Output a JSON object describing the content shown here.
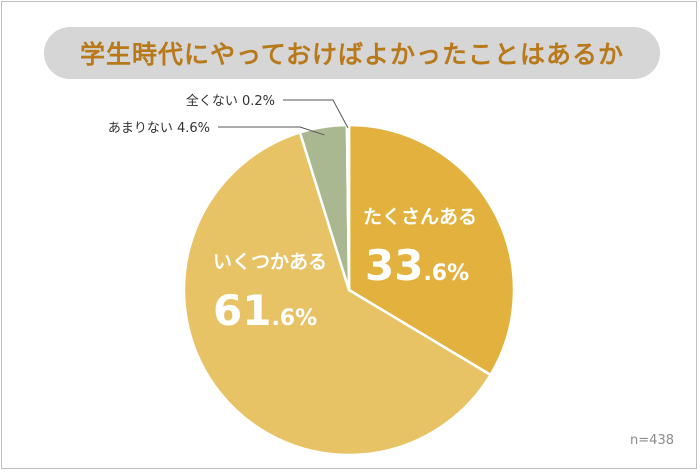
{
  "title": "学生時代にやっておけばよかったことはあるか",
  "sample_size": "n=438",
  "chart_data": {
    "type": "pie",
    "title": "学生時代にやっておけばよかったことはあるか",
    "slices": [
      {
        "label": "たくさんある",
        "value": 33.6,
        "value_text": "33",
        "decimal_text": ".6%",
        "color": "#e3b23e",
        "label_color": "#ffffff"
      },
      {
        "label": "いくつかある",
        "value": 61.6,
        "value_text": "61",
        "decimal_text": ".6%",
        "color": "#e8c366",
        "label_color": "#ffffff"
      },
      {
        "label": "あまりない",
        "value": 4.6,
        "value_text": "4.6%",
        "color": "#a9b890",
        "label_color": "#333333"
      },
      {
        "label": "全くない",
        "value": 0.2,
        "value_text": "0.2%",
        "color": "#d9d9d9",
        "label_color": "#333333"
      }
    ]
  }
}
